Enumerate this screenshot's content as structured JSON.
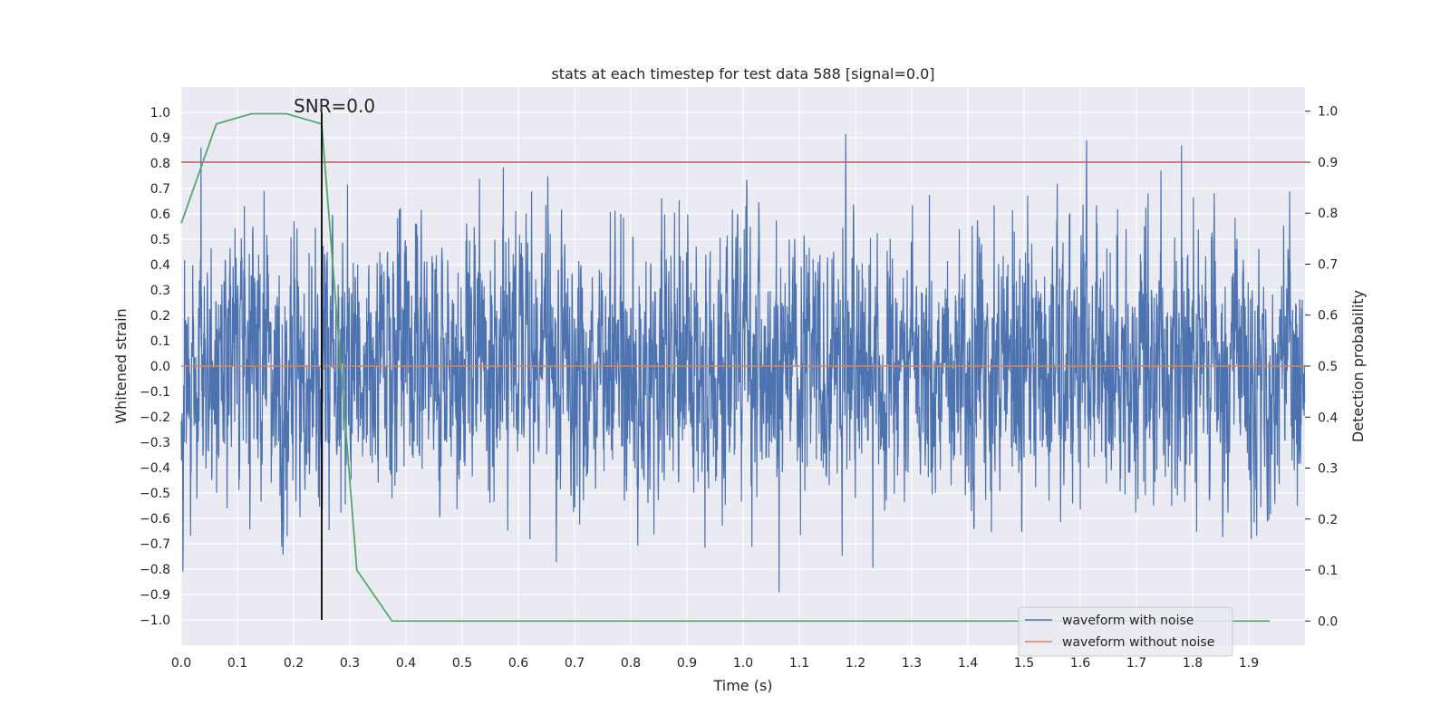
{
  "chart_data": {
    "type": "line",
    "title": "stats at each timestep for test data 588 [signal=0.0]",
    "xlabel": "Time (s)",
    "ylabel": "Whitened strain",
    "y2label": "Detection probability",
    "xlim": [
      0.0,
      2.0
    ],
    "ylim": [
      -1.1,
      1.1
    ],
    "y2lim": [
      -0.0475,
      1.0475
    ],
    "x_ticks": [
      0.0,
      0.1,
      0.2,
      0.3,
      0.4,
      0.5,
      0.6,
      0.7,
      0.8,
      0.9,
      1.0,
      1.1,
      1.2,
      1.3,
      1.4,
      1.5,
      1.6,
      1.7,
      1.8,
      1.9
    ],
    "x_tick_labels": [
      "0.0",
      "0.1",
      "0.2",
      "0.3",
      "0.4",
      "0.5",
      "0.6",
      "0.7",
      "0.8",
      "0.9",
      "1.0",
      "1.1",
      "1.2",
      "1.3",
      "1.4",
      "1.5",
      "1.6",
      "1.7",
      "1.8",
      "1.9"
    ],
    "y_ticks": [
      1.0,
      0.9,
      0.8,
      0.7,
      0.6,
      0.5,
      0.4,
      0.3,
      0.2,
      0.1,
      0.0,
      -0.1,
      -0.2,
      -0.3,
      -0.4,
      -0.5,
      -0.6,
      -0.7,
      -0.8,
      -0.9,
      -1.0
    ],
    "y_tick_labels": [
      "1.0",
      "0.9",
      "0.8",
      "0.7",
      "0.6",
      "0.5",
      "0.4",
      "0.3",
      "0.2",
      "0.1",
      "0.0",
      "−0.1",
      "−0.2",
      "−0.3",
      "−0.4",
      "−0.5",
      "−0.6",
      "−0.7",
      "−0.8",
      "−0.9",
      "−1.0"
    ],
    "y2_ticks": [
      1.0,
      0.9,
      0.8,
      0.7,
      0.6,
      0.5,
      0.4,
      0.3,
      0.2,
      0.1,
      0.0
    ],
    "y2_tick_labels": [
      "1.0",
      "0.9",
      "0.8",
      "0.7",
      "0.6",
      "0.5",
      "0.4",
      "0.3",
      "0.2",
      "0.1",
      "0.0"
    ],
    "grid": true,
    "legend_position": "bottom-right",
    "series": [
      {
        "name": "waveform with noise",
        "color": "#4c72b0",
        "style": "dense noise, sampled at 2048 Hz over 0–2 s, mostly within ±0.6 with excursions to about 1.0 and −1.0",
        "sample_rate": 2048,
        "duration": 2.0
      },
      {
        "name": "waveform without noise",
        "color": "#dd8452",
        "x": [
          0.0,
          2.0
        ],
        "y": [
          0.0,
          0.0
        ]
      },
      {
        "color": "#55a868",
        "axis": "right",
        "x": [
          0.0,
          0.0625,
          0.125,
          0.1875,
          0.25,
          0.3125,
          0.375,
          0.4375,
          0.5,
          0.5625,
          0.625,
          0.6875,
          0.75,
          0.8125,
          0.875,
          0.9375,
          1.0,
          1.0625,
          1.125,
          1.1875,
          1.25,
          1.3125,
          1.375,
          1.4375,
          1.5,
          1.5625,
          1.625,
          1.6875,
          1.75,
          1.8125,
          1.875,
          1.9375
        ],
        "y": [
          0.78,
          0.975,
          0.995,
          0.995,
          0.975,
          0.1,
          0.0,
          0.0,
          0.0,
          0.0,
          0.0,
          0.0,
          0.0,
          0.0,
          0.0,
          0.0,
          0.0,
          0.0,
          0.0,
          0.0,
          0.0,
          0.0,
          0.0,
          0.0,
          0.0,
          0.0,
          0.0,
          0.0,
          0.0,
          0.0,
          0.0,
          0.0
        ]
      }
    ],
    "threshold": {
      "axis": "right",
      "value": 0.9,
      "color": "#c44e52"
    },
    "marker": {
      "x": 0.25,
      "y_from": -1.0,
      "y_to": 1.0,
      "color": "#000000"
    },
    "annotations": [
      {
        "text": "SNR=0.0",
        "x": 0.2,
        "y": 1.0
      }
    ]
  }
}
